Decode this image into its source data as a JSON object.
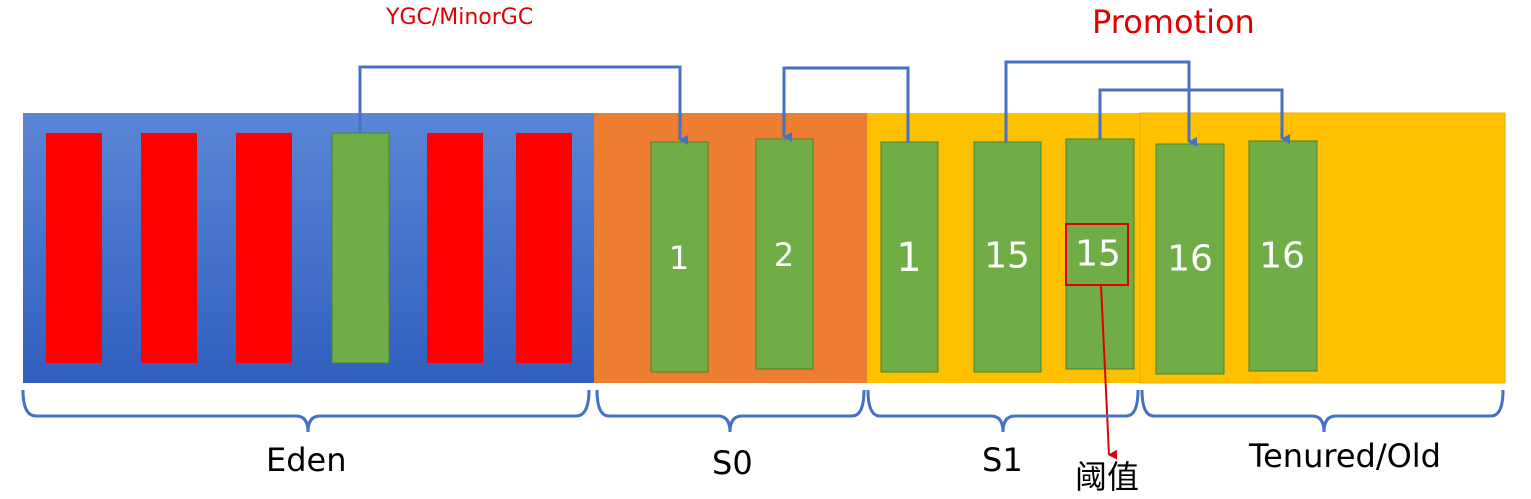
{
  "labels": {
    "ygc": "YGC/MinorGC",
    "promotion": "Promotion",
    "eden": "Eden",
    "s0": "S0",
    "s1": "S1",
    "threshold": "阈值",
    "tenured": "Tenured/Old"
  },
  "colors": {
    "eden_top": "#5b86d6",
    "eden_bottom": "#2f5fbf",
    "s0": "#ed7d31",
    "s1": "#ffc000",
    "old": "#ffc000",
    "red_object": "#ff0000",
    "green_object": "#70ad47",
    "arrow": "#4472c4",
    "threshold_mark": "#e00000",
    "title_text": "#e00000"
  },
  "eden_objects": [
    "red",
    "red",
    "red",
    "green",
    "red",
    "red"
  ],
  "s0_objects": [
    "1",
    "2"
  ],
  "s1_objects": [
    "1",
    "15",
    "15"
  ],
  "old_objects": [
    "16",
    "16"
  ]
}
